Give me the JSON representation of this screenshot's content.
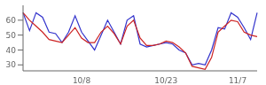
{
  "chart_data": {
    "type": "line",
    "categories": [
      null,
      null,
      null,
      null,
      null,
      null,
      null,
      null,
      null,
      "10/8",
      null,
      null,
      null,
      null,
      null,
      null,
      null,
      null,
      null,
      null,
      null,
      null,
      "10/23",
      null,
      null,
      null,
      null,
      null,
      null,
      null,
      null,
      null,
      null,
      "11/7",
      null,
      null,
      null
    ],
    "series": [
      {
        "color": "#3333cc",
        "values": [
          65,
          53,
          65,
          62,
          52,
          51,
          45,
          52,
          63,
          52,
          46,
          40,
          50,
          60,
          52,
          44,
          60,
          63,
          44,
          42,
          43,
          44,
          45,
          44,
          40,
          38,
          30,
          31,
          30,
          40,
          55,
          54,
          65,
          62,
          55,
          47,
          65
        ]
      },
      {
        "color": "#cc2222",
        "values": [
          65,
          60,
          56,
          52,
          47,
          46,
          45,
          50,
          55,
          48,
          45,
          45,
          52,
          56,
          51,
          44,
          56,
          60,
          48,
          43,
          43,
          44,
          46,
          45,
          42,
          38,
          29,
          28,
          27,
          35,
          52,
          56,
          60,
          59,
          52,
          50,
          49
        ]
      }
    ],
    "ylim": [
      26,
      70
    ],
    "yticks": [
      30,
      40,
      50,
      60
    ],
    "grid": false
  }
}
